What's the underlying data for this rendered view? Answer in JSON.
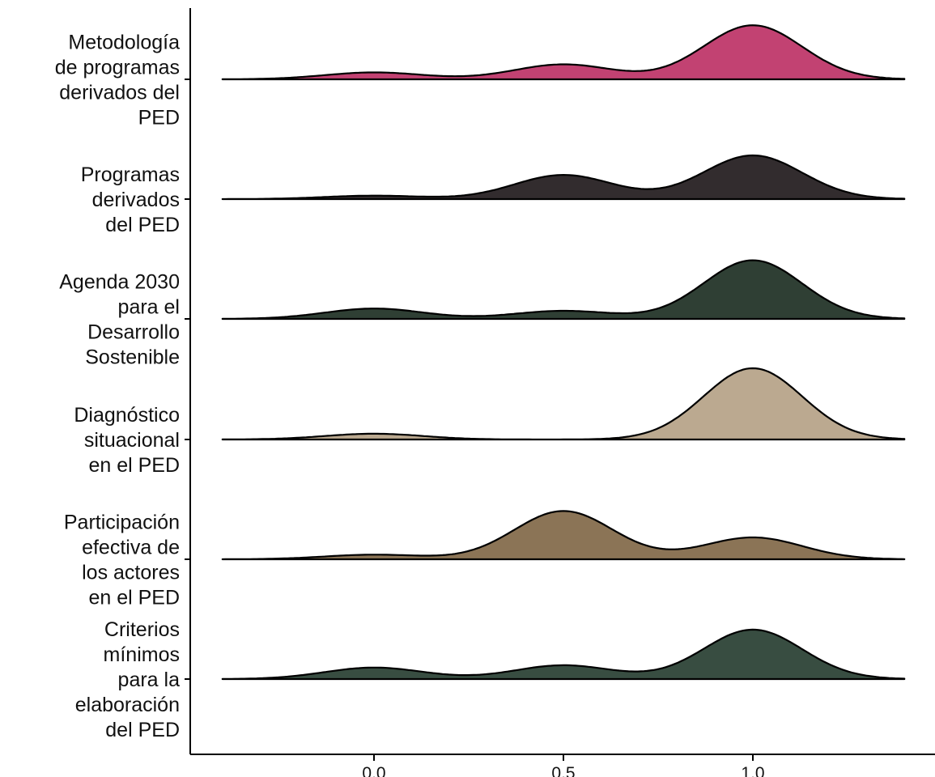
{
  "chart_data": {
    "type": "ridgeline",
    "title": "",
    "xlabel": "",
    "ylabel": "",
    "xlim": [
      -0.4,
      1.4
    ],
    "x_ticks": [
      0.0,
      0.5,
      1.0
    ],
    "x_tick_labels": [
      "0.0",
      "0.5",
      "1.0"
    ],
    "grid": false,
    "legend": "none",
    "series": [
      {
        "category": "Metodología de programas derivados del PED",
        "label_lines": [
          "Metodología",
          "de programas",
          "derivados del",
          "PED"
        ],
        "color": "#c24272",
        "peaks": [
          {
            "x": 0.0,
            "h": 0.06
          },
          {
            "x": 0.5,
            "h": 0.13
          },
          {
            "x": 1.0,
            "h": 0.47
          }
        ]
      },
      {
        "category": "Programas derivados del PED",
        "label_lines": [
          "Programas",
          "derivados",
          "del PED"
        ],
        "color": "#322c2e",
        "peaks": [
          {
            "x": 0.0,
            "h": 0.03
          },
          {
            "x": 0.5,
            "h": 0.21
          },
          {
            "x": 1.0,
            "h": 0.38
          }
        ]
      },
      {
        "category": "Agenda 2030 para el Desarrollo Sostenible",
        "label_lines": [
          "Agenda 2030",
          "para el",
          "Desarrollo",
          "Sostenible"
        ],
        "color": "#2f3f34",
        "peaks": [
          {
            "x": 0.0,
            "h": 0.09
          },
          {
            "x": 0.5,
            "h": 0.07
          },
          {
            "x": 1.0,
            "h": 0.51
          }
        ]
      },
      {
        "category": "Diagnóstico situacional en el PED",
        "label_lines": [
          "Diagnóstico",
          "situacional",
          "en el PED"
        ],
        "color": "#bba990",
        "peaks": [
          {
            "x": 0.0,
            "h": 0.05
          },
          {
            "x": 0.5,
            "h": 0.0
          },
          {
            "x": 1.0,
            "h": 0.62
          }
        ]
      },
      {
        "category": "Participación efectiva de los actores en el PED",
        "label_lines": [
          "Participación",
          "efectiva de",
          "los actores",
          "en el PED"
        ],
        "color": "#8b7456",
        "peaks": [
          {
            "x": 0.0,
            "h": 0.04
          },
          {
            "x": 0.5,
            "h": 0.42
          },
          {
            "x": 1.0,
            "h": 0.19
          }
        ]
      },
      {
        "category": "Criterios mínimos para la elaboración del PED",
        "label_lines": [
          "Criterios",
          "mínimos",
          "para la",
          "elaboración",
          "del PED"
        ],
        "color": "#384d41",
        "peaks": [
          {
            "x": 0.0,
            "h": 0.1
          },
          {
            "x": 0.5,
            "h": 0.12
          },
          {
            "x": 1.0,
            "h": 0.43
          }
        ]
      }
    ]
  }
}
